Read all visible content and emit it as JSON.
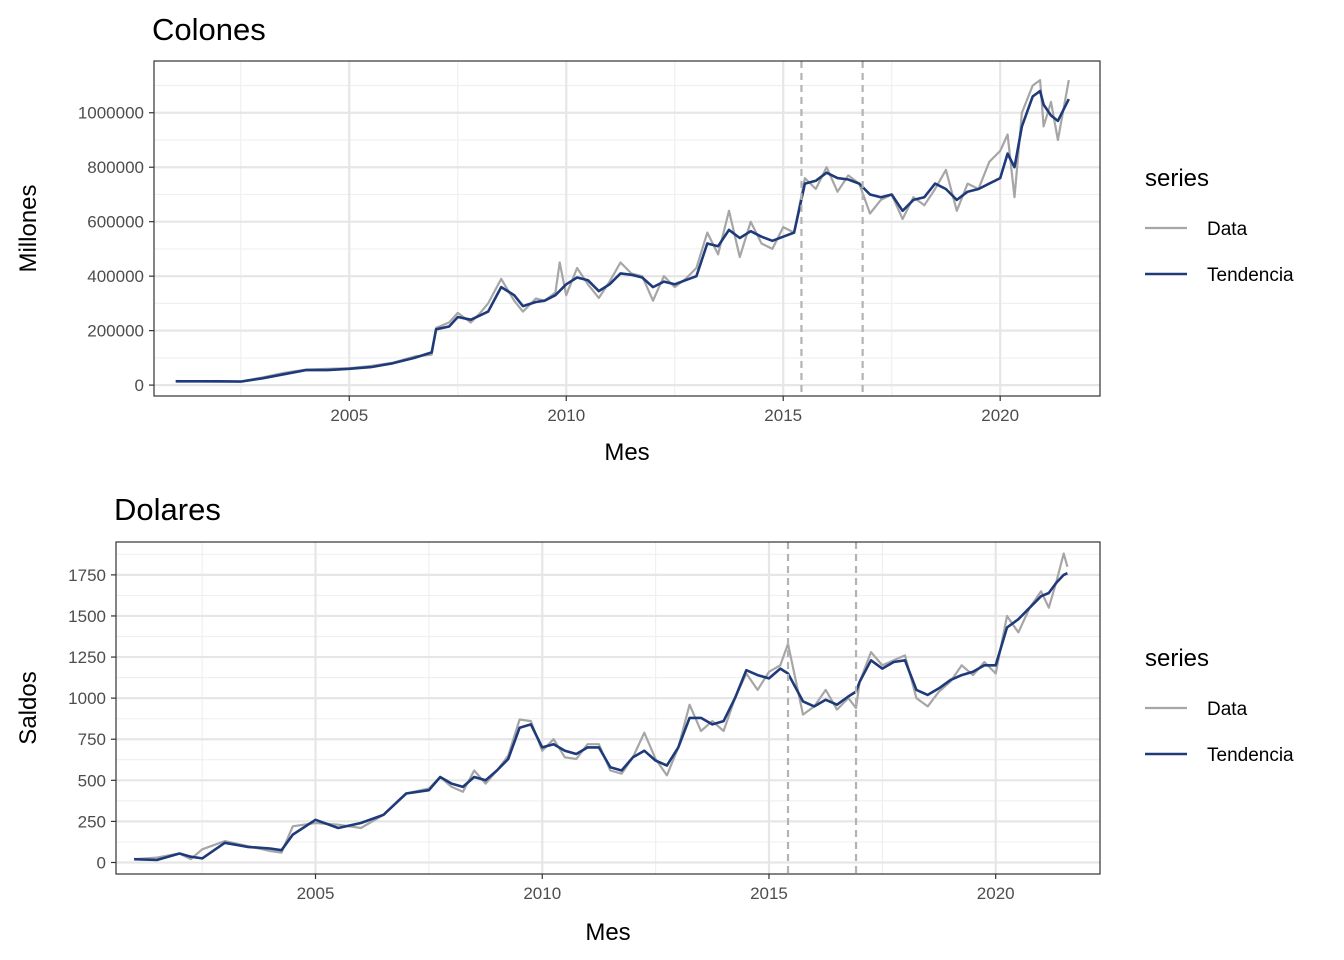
{
  "chart_data": [
    {
      "type": "line",
      "title": "Colones",
      "xlabel": "Mes",
      "ylabel": "Millones",
      "xlim": [
        2000.5,
        2022.3
      ],
      "ylim": [
        -40000,
        1190000
      ],
      "x_ticks": [
        2005,
        2010,
        2015,
        2020
      ],
      "y_ticks": [
        0,
        200000,
        400000,
        600000,
        800000,
        1000000
      ],
      "grid": true,
      "vlines": [
        2015.42,
        2016.83
      ],
      "legend": {
        "title": "series",
        "position": "right",
        "entries": [
          "Data",
          "Tendencia"
        ]
      },
      "colors": {
        "Data": "#a6a6a6",
        "Tendencia": "#1f3a7a"
      },
      "series": [
        {
          "name": "Data",
          "x": [
            2001.0,
            2002.0,
            2002.5,
            2003.0,
            2003.5,
            2004.0,
            2004.5,
            2005.0,
            2005.5,
            2006.0,
            2006.5,
            2006.9,
            2007.0,
            2007.3,
            2007.5,
            2007.8,
            2008.0,
            2008.2,
            2008.5,
            2008.8,
            2009.0,
            2009.3,
            2009.5,
            2009.75,
            2009.85,
            2010.0,
            2010.25,
            2010.5,
            2010.75,
            2011.0,
            2011.25,
            2011.5,
            2011.75,
            2012.0,
            2012.25,
            2012.5,
            2012.75,
            2013.0,
            2013.25,
            2013.5,
            2013.75,
            2014.0,
            2014.25,
            2014.5,
            2014.75,
            2015.0,
            2015.25,
            2015.5,
            2015.75,
            2016.0,
            2016.25,
            2016.5,
            2016.75,
            2017.0,
            2017.25,
            2017.5,
            2017.75,
            2018.0,
            2018.25,
            2018.5,
            2018.75,
            2019.0,
            2019.25,
            2019.5,
            2019.75,
            2020.0,
            2020.17,
            2020.33,
            2020.5,
            2020.75,
            2020.92,
            2021.0,
            2021.17,
            2021.33,
            2021.58
          ],
          "values": [
            15000,
            13000,
            14000,
            28000,
            45000,
            57000,
            60000,
            62000,
            70000,
            82000,
            105000,
            112000,
            210000,
            230000,
            265000,
            230000,
            262000,
            300000,
            390000,
            310000,
            270000,
            318000,
            310000,
            340000,
            450000,
            330000,
            430000,
            370000,
            320000,
            380000,
            450000,
            410000,
            400000,
            310000,
            400000,
            360000,
            390000,
            430000,
            560000,
            480000,
            640000,
            470000,
            600000,
            520000,
            500000,
            580000,
            560000,
            760000,
            720000,
            800000,
            710000,
            770000,
            740000,
            630000,
            680000,
            700000,
            610000,
            690000,
            660000,
            720000,
            790000,
            640000,
            740000,
            720000,
            820000,
            860000,
            920000,
            690000,
            1000000,
            1100000,
            1120000,
            950000,
            1040000,
            900000,
            1120000
          ]
        },
        {
          "name": "Tendencia",
          "x": [
            2001.0,
            2002.0,
            2002.5,
            2003.0,
            2003.5,
            2004.0,
            2004.5,
            2005.0,
            2005.5,
            2006.0,
            2006.5,
            2006.9,
            2007.0,
            2007.3,
            2007.5,
            2007.8,
            2008.0,
            2008.2,
            2008.5,
            2008.8,
            2009.0,
            2009.3,
            2009.5,
            2009.75,
            2010.0,
            2010.25,
            2010.5,
            2010.75,
            2011.0,
            2011.25,
            2011.5,
            2011.75,
            2012.0,
            2012.25,
            2012.5,
            2012.75,
            2013.0,
            2013.25,
            2013.5,
            2013.75,
            2014.0,
            2014.25,
            2014.5,
            2014.75,
            2015.0,
            2015.25,
            2015.5,
            2015.75,
            2016.0,
            2016.25,
            2016.5,
            2016.75,
            2017.0,
            2017.25,
            2017.5,
            2017.75,
            2018.0,
            2018.25,
            2018.5,
            2018.75,
            2019.0,
            2019.25,
            2019.5,
            2019.75,
            2020.0,
            2020.17,
            2020.33,
            2020.5,
            2020.75,
            2020.92,
            2021.0,
            2021.17,
            2021.33,
            2021.58
          ],
          "values": [
            14000,
            14000,
            13000,
            25000,
            40000,
            55000,
            55000,
            60000,
            66000,
            80000,
            100000,
            120000,
            205000,
            215000,
            250000,
            240000,
            255000,
            270000,
            360000,
            330000,
            290000,
            305000,
            310000,
            330000,
            370000,
            395000,
            385000,
            345000,
            370000,
            410000,
            405000,
            395000,
            360000,
            380000,
            370000,
            385000,
            400000,
            520000,
            510000,
            570000,
            540000,
            565000,
            545000,
            530000,
            545000,
            560000,
            740000,
            750000,
            780000,
            760000,
            755000,
            740000,
            700000,
            690000,
            700000,
            640000,
            680000,
            690000,
            740000,
            720000,
            680000,
            710000,
            720000,
            740000,
            760000,
            850000,
            800000,
            950000,
            1060000,
            1080000,
            1030000,
            990000,
            970000,
            1050000
          ]
        }
      ]
    },
    {
      "type": "line",
      "title": "Dolares",
      "xlabel": "Mes",
      "ylabel": "Saldos",
      "xlim": [
        2000.6,
        2022.3
      ],
      "ylim": [
        -70,
        1950
      ],
      "x_ticks": [
        2005,
        2010,
        2015,
        2020
      ],
      "y_ticks": [
        0,
        250,
        500,
        750,
        1000,
        1250,
        1500,
        1750
      ],
      "grid": true,
      "vlines": [
        2015.42,
        2016.92
      ],
      "legend": {
        "title": "series",
        "position": "right",
        "entries": [
          "Data",
          "Tendencia"
        ]
      },
      "colors": {
        "Data": "#a6a6a6",
        "Tendencia": "#1f3a7a"
      },
      "series": [
        {
          "name": "Data",
          "x": [
            2001.0,
            2001.5,
            2002.0,
            2002.25,
            2002.5,
            2003.0,
            2003.5,
            2004.0,
            2004.25,
            2004.5,
            2005.0,
            2005.5,
            2006.0,
            2006.5,
            2007.0,
            2007.5,
            2007.75,
            2008.0,
            2008.25,
            2008.5,
            2008.75,
            2009.0,
            2009.25,
            2009.5,
            2009.75,
            2010.0,
            2010.25,
            2010.5,
            2010.75,
            2011.0,
            2011.25,
            2011.5,
            2011.75,
            2012.0,
            2012.25,
            2012.5,
            2012.75,
            2013.0,
            2013.25,
            2013.5,
            2013.75,
            2014.0,
            2014.25,
            2014.5,
            2014.75,
            2015.0,
            2015.25,
            2015.42,
            2015.75,
            2016.0,
            2016.25,
            2016.5,
            2016.75,
            2016.92,
            2017.0,
            2017.25,
            2017.5,
            2017.75,
            2018.0,
            2018.25,
            2018.5,
            2018.75,
            2019.0,
            2019.25,
            2019.5,
            2019.75,
            2020.0,
            2020.25,
            2020.5,
            2020.75,
            2021.0,
            2021.17,
            2021.33,
            2021.5,
            2021.58
          ],
          "values": [
            20,
            30,
            55,
            20,
            80,
            130,
            100,
            70,
            60,
            220,
            240,
            230,
            210,
            290,
            420,
            450,
            520,
            460,
            430,
            560,
            480,
            560,
            650,
            870,
            860,
            680,
            750,
            640,
            630,
            720,
            720,
            560,
            540,
            640,
            790,
            630,
            530,
            700,
            960,
            800,
            860,
            800,
            1000,
            1150,
            1050,
            1160,
            1200,
            1330,
            900,
            950,
            1050,
            930,
            1000,
            940,
            1100,
            1280,
            1200,
            1230,
            1260,
            1000,
            950,
            1040,
            1100,
            1200,
            1140,
            1220,
            1150,
            1500,
            1400,
            1550,
            1650,
            1550,
            1700,
            1880,
            1800
          ]
        },
        {
          "name": "Tendencia",
          "x": [
            2001.0,
            2001.5,
            2002.0,
            2002.25,
            2002.5,
            2003.0,
            2003.5,
            2004.0,
            2004.25,
            2004.5,
            2005.0,
            2005.5,
            2006.0,
            2006.5,
            2007.0,
            2007.5,
            2007.75,
            2008.0,
            2008.25,
            2008.5,
            2008.75,
            2009.0,
            2009.25,
            2009.5,
            2009.75,
            2010.0,
            2010.25,
            2010.5,
            2010.75,
            2011.0,
            2011.25,
            2011.5,
            2011.75,
            2012.0,
            2012.25,
            2012.5,
            2012.75,
            2013.0,
            2013.25,
            2013.5,
            2013.75,
            2014.0,
            2014.25,
            2014.5,
            2014.75,
            2015.0,
            2015.25,
            2015.42,
            2015.75,
            2016.0,
            2016.25,
            2016.5,
            2016.75,
            2016.92,
            2017.0,
            2017.25,
            2017.5,
            2017.75,
            2018.0,
            2018.25,
            2018.5,
            2018.75,
            2019.0,
            2019.25,
            2019.5,
            2019.75,
            2020.0,
            2020.25,
            2020.5,
            2020.75,
            2021.0,
            2021.17,
            2021.33,
            2021.5,
            2021.58
          ],
          "values": [
            20,
            15,
            55,
            35,
            25,
            120,
            95,
            85,
            75,
            170,
            260,
            210,
            240,
            290,
            420,
            440,
            520,
            480,
            460,
            520,
            500,
            560,
            630,
            820,
            840,
            700,
            720,
            680,
            660,
            700,
            700,
            580,
            560,
            640,
            680,
            620,
            590,
            700,
            880,
            880,
            840,
            860,
            1000,
            1170,
            1140,
            1120,
            1180,
            1150,
            980,
            950,
            990,
            960,
            1010,
            1040,
            1100,
            1230,
            1180,
            1220,
            1230,
            1050,
            1020,
            1060,
            1110,
            1140,
            1160,
            1200,
            1200,
            1430,
            1480,
            1550,
            1620,
            1640,
            1700,
            1750,
            1760
          ]
        }
      ]
    }
  ]
}
